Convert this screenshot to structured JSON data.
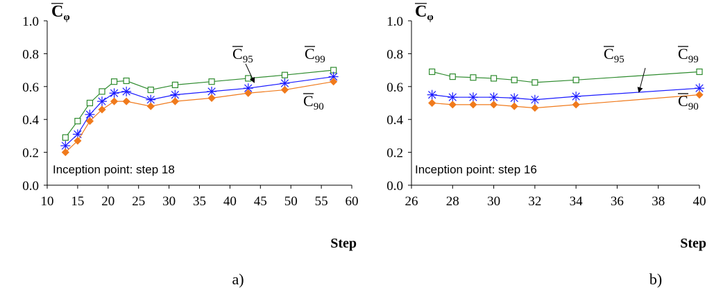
{
  "chart_data": [
    {
      "type": "line",
      "panel_label": "a)",
      "xlabel": "Step",
      "ylabel_main": "C",
      "ylabel_sub": "φ",
      "xlim": [
        10,
        60
      ],
      "ylim": [
        0.0,
        1.0
      ],
      "xticks": [
        10,
        15,
        20,
        25,
        30,
        35,
        40,
        45,
        50,
        55,
        60
      ],
      "yticks": [
        0.0,
        0.2,
        0.4,
        0.6,
        0.8,
        1.0
      ],
      "ytick_labels": [
        "0.0",
        "0.2",
        "0.4",
        "0.6",
        "0.8",
        "1.0"
      ],
      "annotation": "Inception point: step 18",
      "x": [
        13,
        15,
        17,
        19,
        21,
        23,
        27,
        31,
        37,
        43,
        49,
        57
      ],
      "series": [
        {
          "main": "C",
          "sub": "99",
          "color": "#2e8b2e",
          "marker": "open-square",
          "values": [
            0.29,
            0.39,
            0.5,
            0.57,
            0.63,
            0.635,
            0.58,
            0.61,
            0.63,
            0.65,
            0.67,
            0.7
          ]
        },
        {
          "main": "C",
          "sub": "95",
          "color": "#1a1aff",
          "marker": "asterisk",
          "values": [
            0.24,
            0.31,
            0.43,
            0.51,
            0.56,
            0.57,
            0.52,
            0.55,
            0.57,
            0.59,
            0.62,
            0.66
          ]
        },
        {
          "main": "C",
          "sub": "90",
          "color": "#f07a1c",
          "marker": "filled-diamond",
          "values": [
            0.2,
            0.27,
            0.39,
            0.46,
            0.51,
            0.51,
            0.48,
            0.51,
            0.53,
            0.56,
            0.58,
            0.63
          ]
        }
      ]
    },
    {
      "type": "line",
      "panel_label": "b)",
      "xlabel": "Step",
      "ylabel_main": "C",
      "ylabel_sub": "φ",
      "xlim": [
        26,
        40
      ],
      "ylim": [
        0.0,
        1.0
      ],
      "xticks": [
        26,
        28,
        30,
        32,
        34,
        36,
        38,
        40
      ],
      "yticks": [
        0.0,
        0.2,
        0.4,
        0.6,
        0.8,
        1.0
      ],
      "ytick_labels": [
        "0.0",
        "0.2",
        "0.4",
        "0.6",
        "0.8",
        "1.0"
      ],
      "annotation": "Inception point: step 16",
      "x": [
        27,
        28,
        29,
        30,
        31,
        32,
        34,
        40
      ],
      "series": [
        {
          "main": "C",
          "sub": "99",
          "color": "#2e8b2e",
          "marker": "open-square",
          "values": [
            0.69,
            0.66,
            0.655,
            0.65,
            0.64,
            0.625,
            0.64,
            0.69
          ]
        },
        {
          "main": "C",
          "sub": "95",
          "color": "#1a1aff",
          "marker": "asterisk",
          "values": [
            0.55,
            0.535,
            0.535,
            0.535,
            0.53,
            0.52,
            0.54,
            0.59
          ]
        },
        {
          "main": "C",
          "sub": "90",
          "color": "#f07a1c",
          "marker": "filled-diamond",
          "values": [
            0.5,
            0.49,
            0.49,
            0.49,
            0.48,
            0.47,
            0.49,
            0.55
          ]
        }
      ]
    }
  ]
}
